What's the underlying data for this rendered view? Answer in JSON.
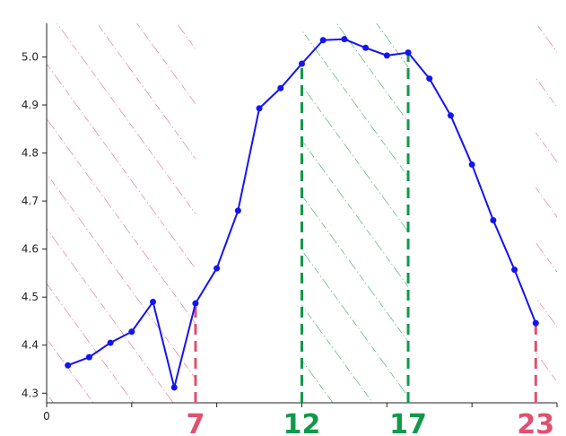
{
  "chart_data": {
    "type": "line",
    "x": [
      1,
      2,
      3,
      4,
      5,
      6,
      7,
      8,
      9,
      10,
      11,
      12,
      13,
      14,
      15,
      16,
      17,
      18,
      19,
      20,
      21,
      22,
      23
    ],
    "series": [
      {
        "values": [
          4.358,
          4.375,
          4.405,
          4.428,
          4.49,
          4.312,
          4.487,
          4.56,
          4.68,
          4.893,
          4.935,
          4.986,
          5.035,
          5.037,
          5.019,
          5.003,
          5.009,
          4.955,
          4.878,
          4.776,
          4.66,
          4.557,
          4.446
        ],
        "color": "#1414f0"
      }
    ],
    "xlim": [
      0,
      24
    ],
    "ylim": [
      4.28,
      5.07
    ],
    "yticks": [
      "4.3",
      "4.4",
      "4.5",
      "4.6",
      "4.7",
      "4.8",
      "4.9",
      "5.0"
    ],
    "xticks": [
      "0"
    ],
    "ylabel": "",
    "xlabel": "",
    "title": "",
    "grid": false,
    "highlighted_x": [
      {
        "label": "7",
        "x": 7,
        "color": "#e05070"
      },
      {
        "label": "12",
        "x": 12,
        "color": "#11994a"
      },
      {
        "label": "17",
        "x": 17,
        "color": "#11994a"
      },
      {
        "label": "23",
        "x": 23,
        "color": "#e05070"
      }
    ],
    "shaded_regions": [
      {
        "from": 0,
        "to": 7,
        "color": "#e05070",
        "style": "hatched"
      },
      {
        "from": 12,
        "to": 17,
        "color": "#11994a",
        "style": "hatched"
      },
      {
        "from": 23,
        "to": 24,
        "color": "#e05070",
        "style": "hatched"
      }
    ]
  }
}
